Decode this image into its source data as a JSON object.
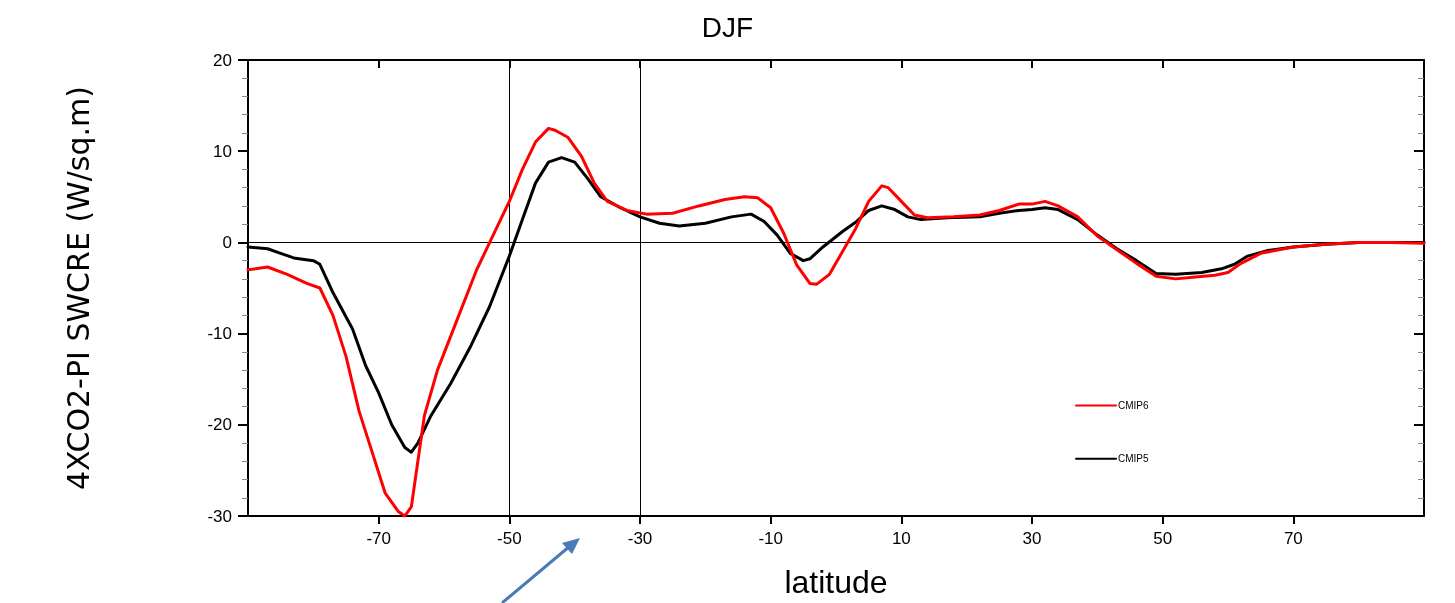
{
  "chart_data": {
    "type": "line",
    "title": "DJF",
    "xlabel": "latitude",
    "ylabel": "4XCO2-PI SWCRE (W/sq.m)",
    "xlim": [
      -90,
      90
    ],
    "xticks": [
      -70,
      -50,
      -30,
      -10,
      10,
      30,
      50,
      70
    ],
    "ylim": [
      -30,
      20
    ],
    "yticks": [
      -30,
      -20,
      -10,
      0,
      10,
      20
    ],
    "grid": false,
    "legend": "bottom right",
    "marker": "none",
    "line_style": "solid",
    "ref_lines": [
      {
        "axis": "x",
        "value": -50,
        "color": "#000000"
      },
      {
        "axis": "x",
        "value": -30,
        "color": "#000000"
      },
      {
        "axis": "y",
        "value": 0,
        "color": "#000000"
      }
    ],
    "series": [
      {
        "name": "CMIP6",
        "color": "#ff0000",
        "x": [
          -90,
          -87,
          -84,
          -81,
          -79,
          -77,
          -75,
          -73,
          -71,
          -69,
          -67,
          -66,
          -65,
          -64,
          -63,
          -61,
          -58,
          -55,
          -52,
          -50,
          -48,
          -46,
          -44,
          -43,
          -41,
          -39,
          -37,
          -35,
          -32,
          -29,
          -25,
          -21,
          -17,
          -14,
          -12,
          -10,
          -8,
          -6,
          -4,
          -3,
          -1,
          1,
          3,
          5,
          7,
          8,
          10,
          12,
          14,
          18,
          22,
          25,
          28,
          30,
          32,
          34,
          37,
          40,
          43,
          46,
          49,
          52,
          55,
          58,
          60,
          62,
          65,
          70,
          75,
          80,
          85,
          90
        ],
        "values": [
          -3,
          -2.7,
          -3.5,
          -4.5,
          -5,
          -8,
          -12.5,
          -18.5,
          -23,
          -27.5,
          -29.5,
          -30,
          -29,
          -24,
          -19,
          -14,
          -8.5,
          -3,
          1.5,
          4.5,
          8,
          11,
          12.5,
          12.3,
          11.5,
          9.5,
          6.5,
          4.5,
          3.5,
          3.1,
          3.2,
          4,
          4.7,
          5,
          4.9,
          3.8,
          1,
          -2.5,
          -4.5,
          -4.6,
          -3.5,
          -1,
          1.5,
          4.5,
          6.2,
          6,
          4.5,
          3,
          2.7,
          2.8,
          3,
          3.5,
          4.2,
          4.2,
          4.5,
          4,
          2.8,
          0.7,
          -0.8,
          -2.3,
          -3.7,
          -4,
          -3.8,
          -3.6,
          -3.3,
          -2.3,
          -1.2,
          -0.5,
          -0.2,
          0,
          0,
          -0.1
        ]
      },
      {
        "name": "CMIP5",
        "color": "#000000",
        "x": [
          -90,
          -87,
          -85,
          -83,
          -80,
          -79,
          -77,
          -74,
          -72,
          -70,
          -68,
          -66,
          -65,
          -64,
          -62,
          -59,
          -56,
          -53,
          -50,
          -48,
          -46,
          -44,
          -42,
          -40,
          -38,
          -36,
          -33,
          -30,
          -27,
          -24,
          -20,
          -16,
          -13,
          -11,
          -9,
          -7,
          -5,
          -4,
          -2,
          1,
          3,
          5,
          7,
          9,
          11,
          13,
          17,
          22,
          25,
          28,
          30,
          32,
          34,
          37,
          40,
          43,
          46,
          49,
          52,
          56,
          59,
          61,
          63,
          66,
          70,
          75,
          80,
          85,
          90
        ],
        "values": [
          -0.5,
          -0.7,
          -1.2,
          -1.7,
          -2,
          -2.4,
          -5.5,
          -9.5,
          -13.5,
          -16.5,
          -20,
          -22.5,
          -23,
          -22,
          -19,
          -15.5,
          -11.5,
          -7,
          -1.5,
          2.5,
          6.5,
          8.8,
          9.3,
          8.8,
          7,
          5,
          3.8,
          2.8,
          2.1,
          1.8,
          2.1,
          2.8,
          3.1,
          2.3,
          0.8,
          -1.2,
          -2,
          -1.8,
          -0.5,
          1.2,
          2.2,
          3.5,
          4,
          3.6,
          2.8,
          2.5,
          2.7,
          2.8,
          3.2,
          3.5,
          3.6,
          3.8,
          3.6,
          2.5,
          0.8,
          -0.7,
          -2,
          -3.4,
          -3.5,
          -3.3,
          -2.9,
          -2.4,
          -1.5,
          -0.9,
          -0.5,
          -0.2,
          0,
          0,
          0
        ]
      }
    ]
  }
}
